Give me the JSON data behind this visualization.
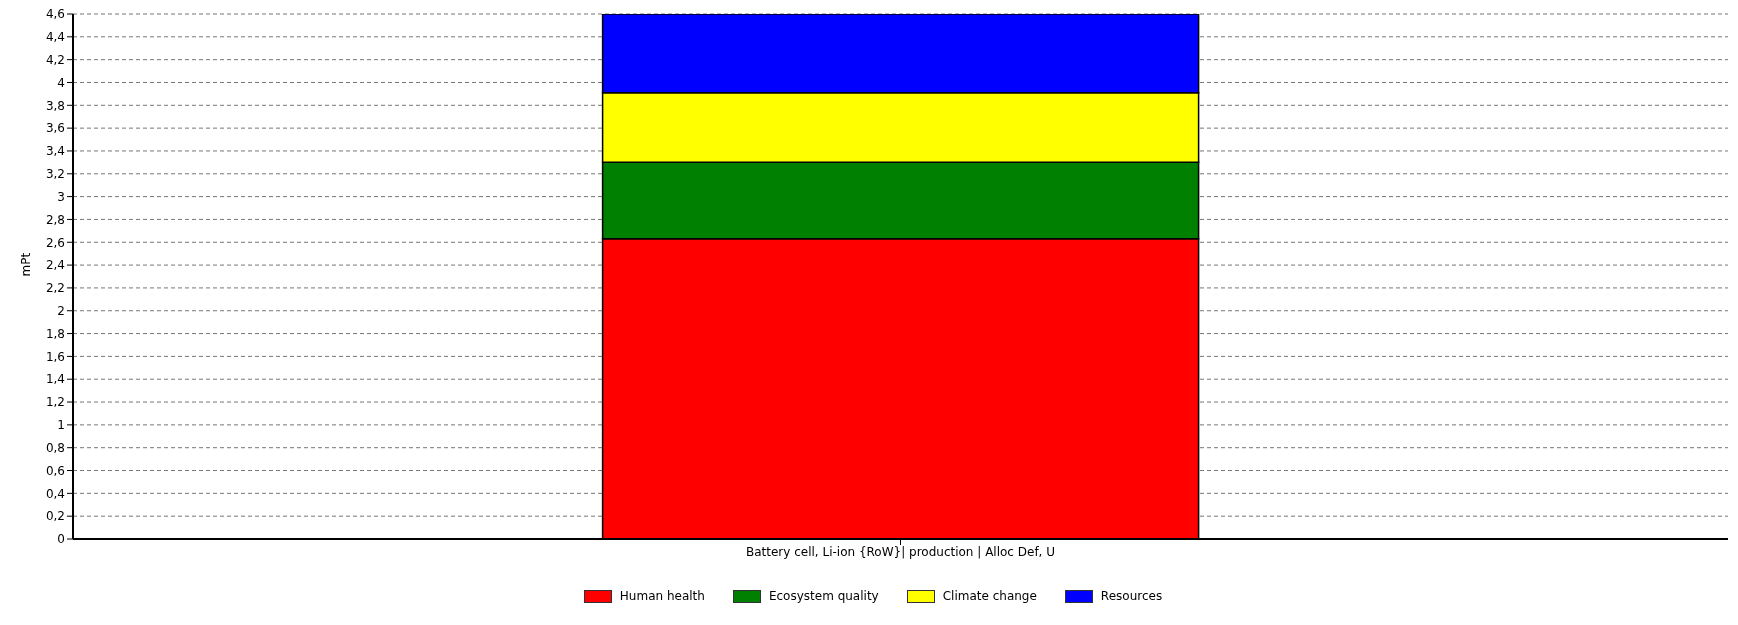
{
  "chart_data": {
    "type": "bar",
    "stacked": true,
    "ylabel": "mPt",
    "categories": [
      "Battery cell, Li-ion {RoW}| production | Alloc Def, U"
    ],
    "series": [
      {
        "name": "Human health",
        "color": "#ff0000",
        "values": [
          2.63
        ]
      },
      {
        "name": "Ecosystem quality",
        "color": "#008000",
        "values": [
          0.67
        ]
      },
      {
        "name": "Climate change",
        "color": "#ffff00",
        "values": [
          0.61
        ]
      },
      {
        "name": "Resources",
        "color": "#0000ff",
        "values": [
          0.69
        ]
      }
    ],
    "ylim": [
      0,
      4.6
    ],
    "yticks": [
      0,
      {
        "value": 0.2,
        "label": "0,2"
      },
      {
        "value": 0.4,
        "label": "0,4"
      },
      {
        "value": 0.6,
        "label": "0,6"
      },
      {
        "value": 0.8,
        "label": "0,8"
      },
      1,
      {
        "value": 1.2,
        "label": "1,2"
      },
      {
        "value": 1.4,
        "label": "1,4"
      },
      {
        "value": 1.6,
        "label": "1,6"
      },
      {
        "value": 1.8,
        "label": "1,8"
      },
      2,
      {
        "value": 2.2,
        "label": "2,2"
      },
      {
        "value": 2.4,
        "label": "2,4"
      },
      {
        "value": 2.6,
        "label": "2,6"
      },
      {
        "value": 2.8,
        "label": "2,8"
      },
      3,
      {
        "value": 3.2,
        "label": "3,2"
      },
      {
        "value": 3.4,
        "label": "3,4"
      },
      {
        "value": 3.6,
        "label": "3,6"
      },
      {
        "value": 3.8,
        "label": "3,8"
      },
      4,
      {
        "value": 4.2,
        "label": "4,2"
      },
      {
        "value": 4.4,
        "label": "4,4"
      },
      {
        "value": 4.6,
        "label": "4,6"
      }
    ],
    "grid": "y",
    "legend": "bottom"
  }
}
